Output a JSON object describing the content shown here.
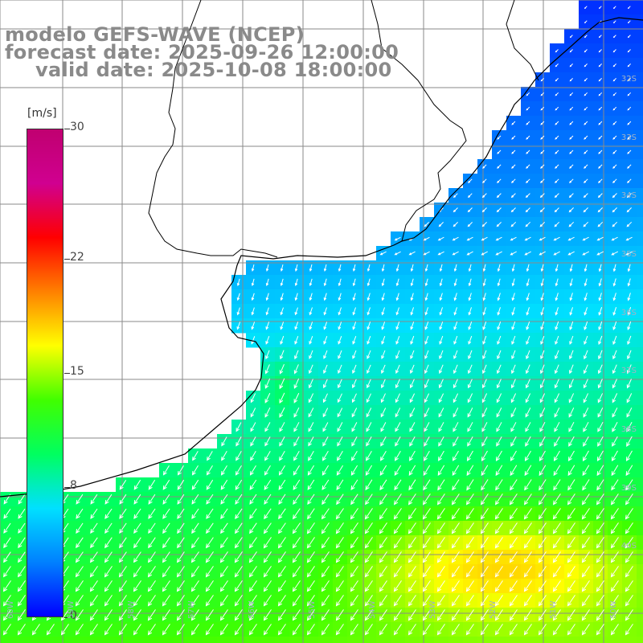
{
  "title": {
    "line1": "modelo GEFS-WAVE (NCEP)",
    "line2": "forecast date: 2025-09-26 12:00:00",
    "line3": "valid date: 2025-10-08 18:00:00"
  },
  "colorbar": {
    "unit": "[m/s]",
    "ticks": [
      {
        "value": 30,
        "label": "30"
      },
      {
        "value": 22,
        "label": "22"
      },
      {
        "value": 15,
        "label": "15"
      },
      {
        "value": 8,
        "label": "8"
      },
      {
        "value": 0,
        "label": "0"
      }
    ],
    "range": [
      0,
      30
    ],
    "colors": [
      "#0000ff",
      "#0080ff",
      "#00e0ff",
      "#00ff60",
      "#40ff00",
      "#ffff00",
      "#ff8000",
      "#ff0000",
      "#d00090",
      "#c00070"
    ]
  },
  "map": {
    "variable": "wind speed / direction",
    "land_color": "#ffffff",
    "grid_color": "#8a8a8a",
    "coast_color": "#000000",
    "arrow_color": "#ffffff",
    "lat_labels": [
      "32S",
      "33S",
      "34S",
      "35S",
      "36S",
      "37S",
      "38S",
      "39S",
      "40S"
    ],
    "lon_labels": [
      "60W",
      "59W",
      "58W",
      "57W",
      "56W",
      "55W",
      "54W",
      "53W",
      "52W",
      "51W",
      "50W"
    ]
  }
}
